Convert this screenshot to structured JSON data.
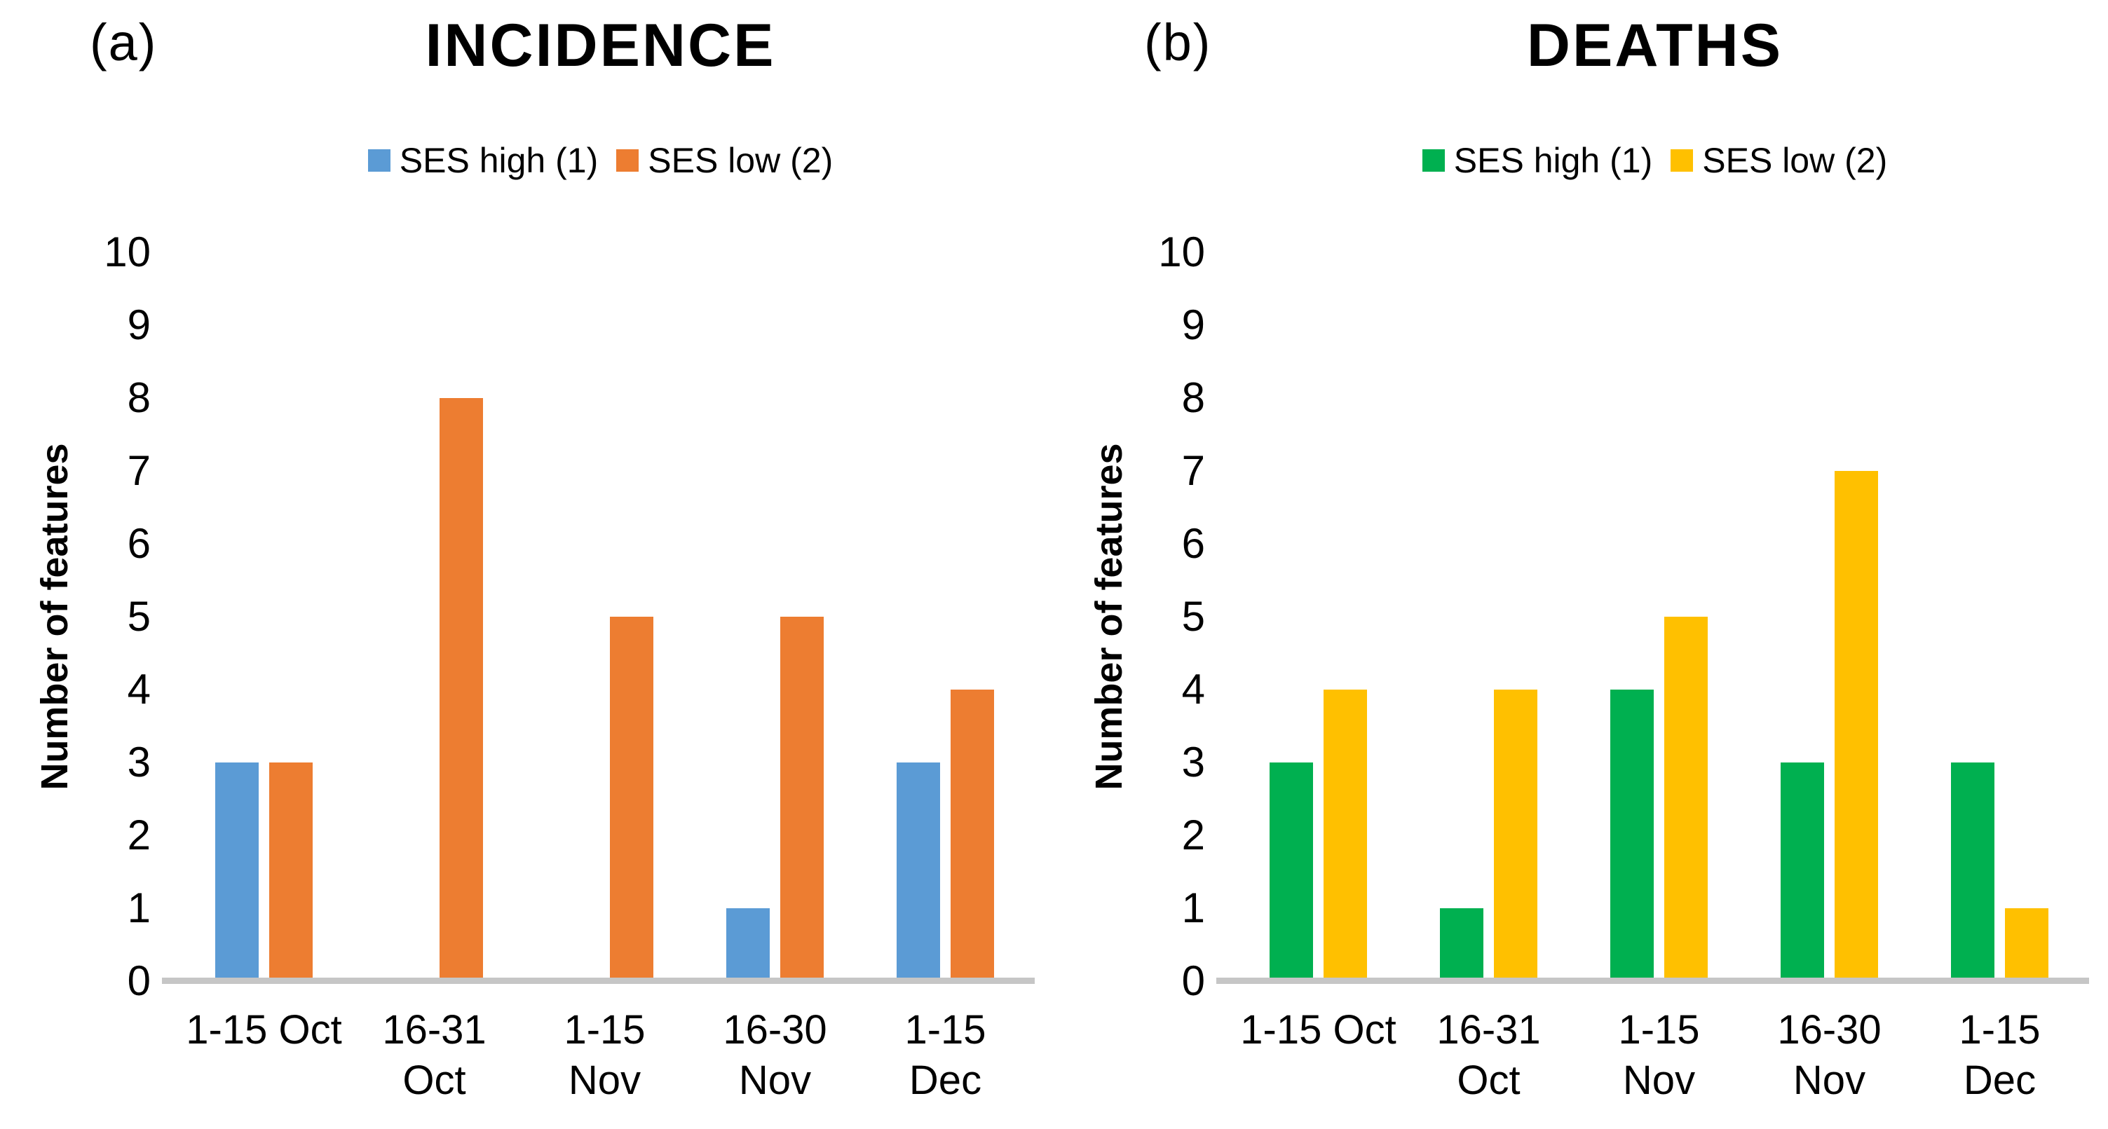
{
  "figure": {
    "background": "#FFFFFF",
    "axis_line_color": "#C6C6C6",
    "text_color": "#000000"
  },
  "chart_data": [
    {
      "type": "bar",
      "panel_label": "(a)",
      "title": "INCIDENCE",
      "ylabel": "Number of features",
      "xlabel": "",
      "ylim": [
        0,
        10
      ],
      "yticks": [
        0,
        1,
        2,
        3,
        4,
        5,
        6,
        7,
        8,
        9,
        10
      ],
      "grid": false,
      "legend_position": "top-center",
      "categories": [
        "1-15 Oct",
        "16-31 Oct",
        "1-15 Nov",
        "16-30 Nov",
        "1-15 Dec"
      ],
      "category_label_lines": [
        [
          "1-15 Oct"
        ],
        [
          "16-31",
          "Oct"
        ],
        [
          "1-15",
          "Nov"
        ],
        [
          "16-30",
          "Nov"
        ],
        [
          "1-15",
          "Dec"
        ]
      ],
      "series": [
        {
          "name": "SES high (1)",
          "color": "#5B9BD5",
          "values": [
            3,
            0,
            0,
            1,
            3
          ]
        },
        {
          "name": "SES low (2)",
          "color": "#ED7D31",
          "values": [
            3,
            8,
            5,
            5,
            4
          ]
        }
      ]
    },
    {
      "type": "bar",
      "panel_label": "(b)",
      "title": "DEATHS",
      "ylabel": "Number of features",
      "xlabel": "",
      "ylim": [
        0,
        10
      ],
      "yticks": [
        0,
        1,
        2,
        3,
        4,
        5,
        6,
        7,
        8,
        9,
        10
      ],
      "grid": false,
      "legend_position": "top-center",
      "categories": [
        "1-15 Oct",
        "16-31 Oct",
        "1-15 Nov",
        "16-30 Nov",
        "1-15 Dec"
      ],
      "category_label_lines": [
        [
          "1-15 Oct"
        ],
        [
          "16-31",
          "Oct"
        ],
        [
          "1-15",
          "Nov"
        ],
        [
          "16-30",
          "Nov"
        ],
        [
          "1-15",
          "Dec"
        ]
      ],
      "series": [
        {
          "name": "SES high (1)",
          "color": "#00B050",
          "values": [
            3,
            1,
            4,
            3,
            3
          ]
        },
        {
          "name": "SES low (2)",
          "color": "#FFC000",
          "values": [
            4,
            4,
            5,
            7,
            1
          ]
        }
      ]
    }
  ]
}
